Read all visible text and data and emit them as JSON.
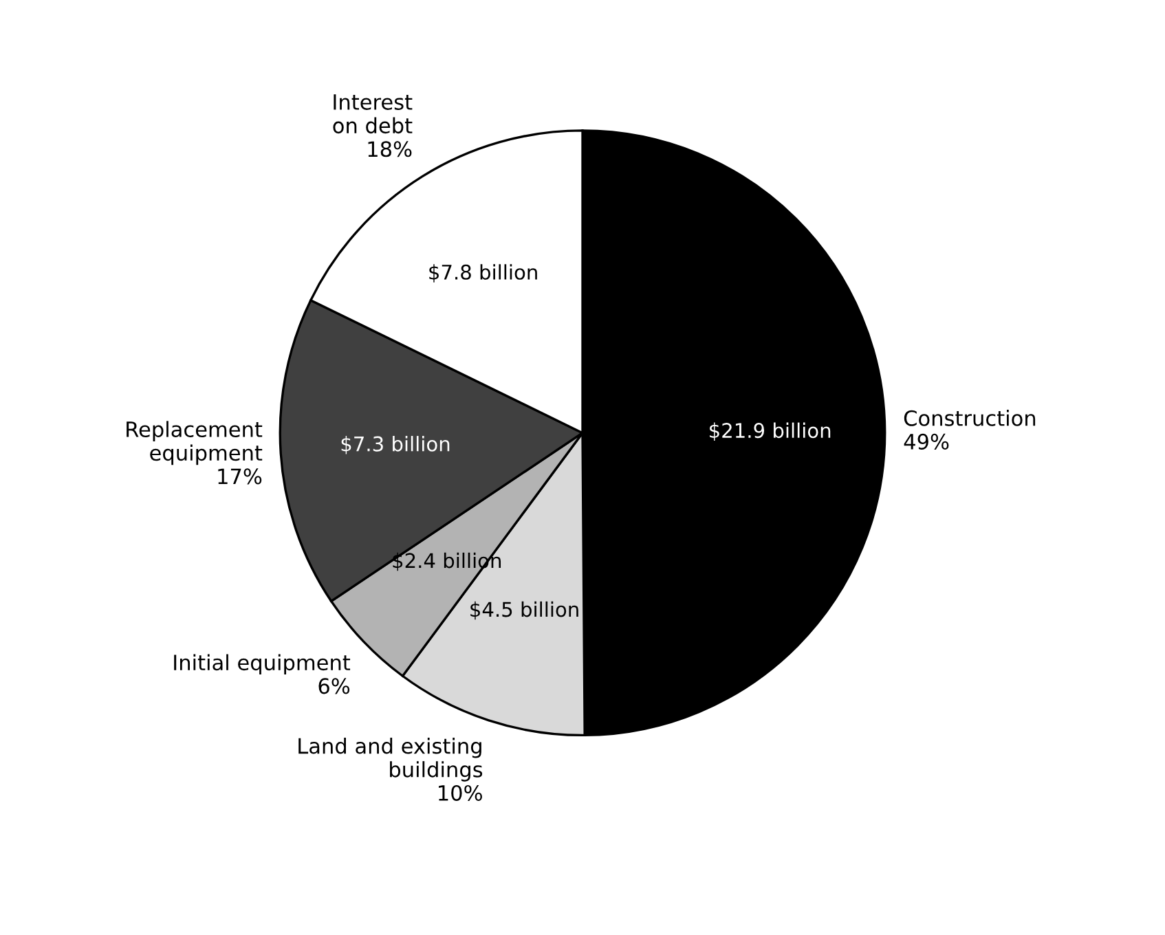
{
  "chart_data": {
    "type": "pie",
    "categories": [
      "Construction\n49%",
      "Land and existing\nbuildings\n10%",
      "Initial equipment\n6%",
      "Replacement\nequipment\n17%",
      "Interest\non debt\n18%"
    ],
    "values": [
      21.9,
      4.5,
      2.4,
      7.3,
      7.8
    ],
    "value_labels": [
      "$21.9 billion",
      "$4.5 billion",
      "$2.4 billion",
      "$7.3 billion",
      "$7.8 billion"
    ],
    "colors": [
      "#000000",
      "#d9d9d9",
      "#b3b3b3",
      "#404040",
      "#ffffff"
    ],
    "legend": false
  }
}
